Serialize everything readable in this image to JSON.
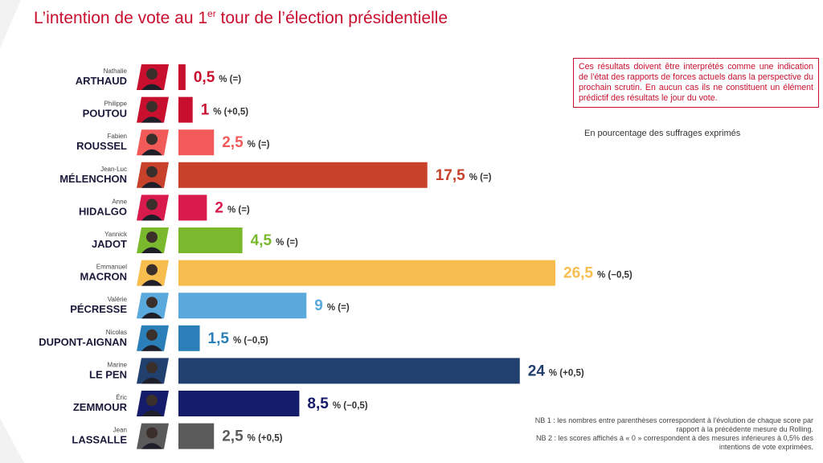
{
  "title": {
    "main": "L’intention de vote au 1",
    "sup": "er",
    "rest": " tour de l’élection présidentielle"
  },
  "notice": "Ces résultats doivent être interprétés comme une indication de l’état des rapports de forces actuels dans la perspective du prochain scrutin. En aucun cas ils ne constituent un élément prédictif des résultats le jour du vote.",
  "subtitle": "En pourcentage des suffrages exprimés",
  "nb1": "NB 1 : les nombres entre parenthèses correspondent à l’évolution de chaque score par rapport à la précédente mesure du Rolling.",
  "nb2": "NB 2 : les scores affichés à « 0 » correspondent à des mesures inférieures à 0,5% des intentions de vote exprimées.",
  "chart_data": {
    "type": "bar",
    "orientation": "horizontal",
    "title": "L’intention de vote au 1er tour de l’élection présidentielle",
    "unit": "%",
    "categories": [
      "ARTHAUD",
      "POUTOU",
      "ROUSSEL",
      "MÉLENCHON",
      "HIDALGO",
      "JADOT",
      "MACRON",
      "PÉCRESSE",
      "DUPONT-AIGNAN",
      "LE PEN",
      "ZEMMOUR",
      "LASSALLE"
    ],
    "first_names": [
      "Nathalie",
      "Philippe",
      "Fabien",
      "Jean-Luc",
      "Anne",
      "Yannick",
      "Emmanuel",
      "Valérie",
      "Nicolas",
      "Marine",
      "Éric",
      "Jean"
    ],
    "values": [
      0.5,
      1,
      2.5,
      17.5,
      2,
      4.5,
      26.5,
      9,
      1.5,
      24,
      8.5,
      2.5
    ],
    "value_labels": [
      "0,5",
      "1",
      "2,5",
      "17,5",
      "2",
      "4,5",
      "26,5",
      "9",
      "1,5",
      "24",
      "8,5",
      "2,5"
    ],
    "changes": [
      "% (=)",
      "% (+0,5)",
      "% (=)",
      "% (=)",
      "% (=)",
      "% (=)",
      "% (−0,5)",
      "% (=)",
      "% (−0,5)",
      "% (+0,5)",
      "% (−0,5)",
      "% (+0,5)"
    ],
    "colors": [
      "#c8102e",
      "#c8102e",
      "#f25a5a",
      "#c8412b",
      "#d91a4c",
      "#7ab82e",
      "#f7be4f",
      "#5aa9dd",
      "#2a7fb8",
      "#21406e",
      "#151c6a",
      "#5a5a5a"
    ],
    "xlim": [
      0,
      26.5
    ],
    "grid": false,
    "legend": "none"
  }
}
